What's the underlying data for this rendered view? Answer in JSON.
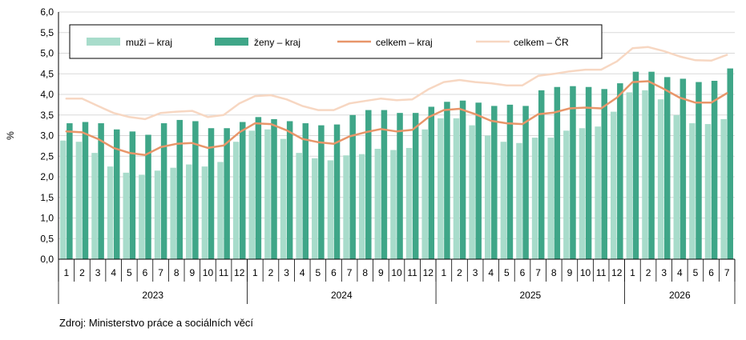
{
  "source": "Zdroj: Ministerstvo práce a sociálních věcí",
  "chart_data": {
    "type": "bar",
    "ylabel": "%",
    "ylim": [
      0,
      6
    ],
    "yticks": [
      "0,0",
      "0,5",
      "1,0",
      "1,5",
      "2,0",
      "2,5",
      "3,0",
      "3,5",
      "4,0",
      "4,5",
      "5,0",
      "5,5",
      "6,0"
    ],
    "grid": true,
    "legend_position": "top-left",
    "years": [
      {
        "label": "2023",
        "months": 12
      },
      {
        "label": "2024",
        "months": 12
      },
      {
        "label": "2025",
        "months": 12
      },
      {
        "label": "2026",
        "months": 7
      }
    ],
    "categories": [
      "1",
      "2",
      "3",
      "4",
      "5",
      "6",
      "7",
      "8",
      "9",
      "10",
      "11",
      "12",
      "1",
      "2",
      "3",
      "4",
      "5",
      "6",
      "7",
      "8",
      "9",
      "10",
      "11",
      "12",
      "1",
      "2",
      "3",
      "4",
      "5",
      "6",
      "7",
      "8",
      "9",
      "10",
      "11",
      "12",
      "1",
      "2",
      "3",
      "4",
      "5",
      "6",
      "7"
    ],
    "series": [
      {
        "name": "muži – kraj",
        "kind": "bar",
        "color": "#a8dccb",
        "values": [
          2.88,
          2.85,
          2.58,
          2.25,
          2.1,
          2.05,
          2.15,
          2.22,
          2.3,
          2.25,
          2.36,
          2.85,
          3.12,
          3.15,
          2.92,
          2.58,
          2.45,
          2.4,
          2.52,
          2.55,
          2.68,
          2.65,
          2.7,
          3.15,
          3.42,
          3.42,
          3.25,
          3.0,
          2.85,
          2.82,
          2.95,
          2.95,
          3.12,
          3.18,
          3.22,
          3.58,
          4.05,
          4.1,
          3.88,
          3.5,
          3.3,
          3.28,
          3.4
        ]
      },
      {
        "name": "ženy – kraj",
        "kind": "bar",
        "color": "#3fa688",
        "values": [
          3.3,
          3.33,
          3.3,
          3.15,
          3.1,
          3.02,
          3.3,
          3.38,
          3.35,
          3.18,
          3.18,
          3.33,
          3.45,
          3.4,
          3.35,
          3.3,
          3.25,
          3.27,
          3.5,
          3.62,
          3.62,
          3.55,
          3.55,
          3.7,
          3.82,
          3.85,
          3.8,
          3.72,
          3.75,
          3.72,
          4.1,
          4.18,
          4.2,
          4.18,
          4.13,
          4.27,
          4.55,
          4.55,
          4.42,
          4.38,
          4.3,
          4.33,
          4.63
        ]
      },
      {
        "name": "celkem – kraj",
        "kind": "line",
        "color": "#e8966a",
        "values": [
          3.1,
          3.08,
          2.92,
          2.7,
          2.58,
          2.53,
          2.72,
          2.8,
          2.82,
          2.7,
          2.76,
          3.08,
          3.3,
          3.28,
          3.13,
          2.92,
          2.84,
          2.8,
          2.98,
          3.08,
          3.16,
          3.1,
          3.14,
          3.44,
          3.62,
          3.65,
          3.52,
          3.36,
          3.3,
          3.28,
          3.52,
          3.56,
          3.66,
          3.68,
          3.66,
          3.92,
          4.3,
          4.32,
          4.13,
          3.92,
          3.8,
          3.8,
          4.03
        ]
      },
      {
        "name": "celkem – ČR",
        "kind": "line",
        "color": "#f7d7c2",
        "values": [
          3.9,
          3.9,
          3.72,
          3.55,
          3.45,
          3.4,
          3.55,
          3.58,
          3.6,
          3.45,
          3.5,
          3.78,
          3.96,
          3.98,
          3.88,
          3.72,
          3.62,
          3.62,
          3.78,
          3.84,
          3.9,
          3.86,
          3.88,
          4.12,
          4.3,
          4.35,
          4.3,
          4.27,
          4.22,
          4.22,
          4.45,
          4.5,
          4.56,
          4.6,
          4.6,
          4.8,
          5.12,
          5.15,
          5.05,
          4.92,
          4.83,
          4.82,
          4.96
        ]
      }
    ]
  }
}
